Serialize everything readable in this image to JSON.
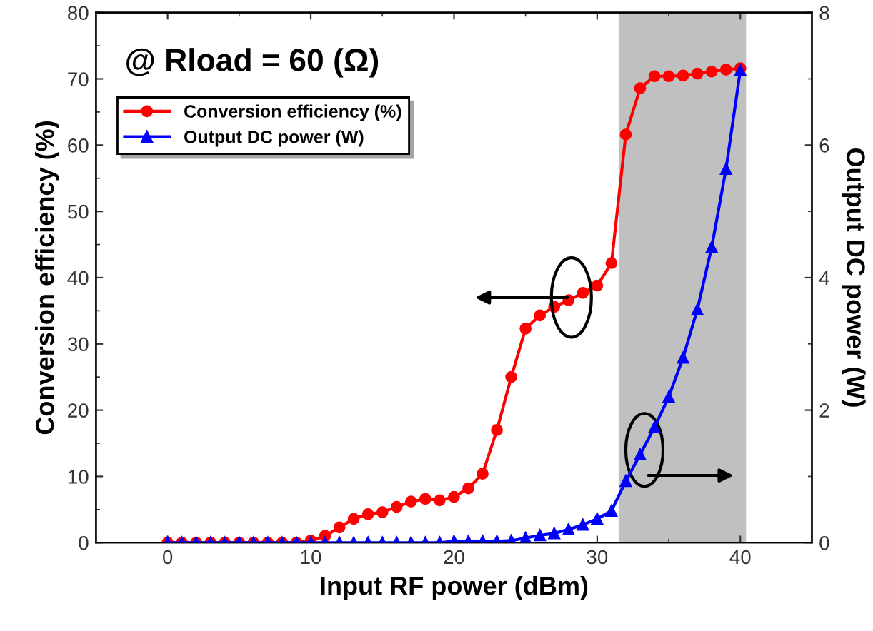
{
  "chart_data": {
    "type": "line",
    "xlabel": "Input RF power (dBm)",
    "ylabel": "Conversion efficiency (%)",
    "y2label": "Output DC power (W)",
    "annotations": [
      "@ Rload = 60 (Ω)"
    ],
    "x": [
      0,
      1,
      2,
      3,
      4,
      5,
      6,
      7,
      8,
      9,
      10,
      11,
      12,
      13,
      14,
      15,
      16,
      17,
      18,
      19,
      20,
      21,
      22,
      23,
      24,
      25,
      26,
      27,
      28,
      29,
      30,
      31,
      32,
      33,
      34,
      35,
      36,
      37,
      38,
      39,
      40
    ],
    "series": [
      {
        "name": "Conversion efficiency (%)",
        "color": "#ff0000",
        "marker": "circle",
        "values": [
          0,
          0,
          0,
          0,
          0,
          0,
          0,
          0,
          0,
          0,
          0.3,
          1.0,
          2.3,
          3.6,
          4.3,
          4.6,
          5.4,
          6.2,
          6.6,
          6.4,
          6.9,
          8.2,
          10.4,
          17.0,
          25.0,
          32.3,
          34.3,
          35.6,
          36.6,
          37.7,
          38.8,
          42.2,
          61.6,
          68.6,
          70.4,
          70.4,
          70.5,
          70.8,
          71.1,
          71.4,
          71.6
        ]
      },
      {
        "name": "Output DC power (W)",
        "color": "#0000ff",
        "marker": "triangle",
        "axis": "y2",
        "values": [
          0,
          0,
          0,
          0,
          0,
          0,
          0,
          0,
          0,
          0,
          0,
          0,
          0,
          0,
          0,
          0,
          0,
          0,
          0,
          0,
          0.02,
          0.02,
          0.02,
          0.02,
          0.03,
          0.07,
          0.11,
          0.14,
          0.2,
          0.27,
          0.36,
          0.48,
          0.93,
          1.33,
          1.74,
          2.2,
          2.79,
          3.52,
          4.46,
          5.64,
          7.13
        ]
      }
    ],
    "bands": [
      {
        "axis": "x",
        "from": 31.5,
        "to": 40.4,
        "color": "#c0c0c0"
      }
    ],
    "xlim": [
      -5,
      45
    ],
    "xticks": [
      0,
      10,
      20,
      30,
      40
    ],
    "ylim": [
      0,
      80
    ],
    "yticks": [
      0,
      10,
      20,
      30,
      40,
      50,
      60,
      70,
      80
    ],
    "y2lim": [
      0,
      8
    ],
    "y2ticks": [
      0,
      2,
      4,
      6,
      8
    ],
    "grid": false,
    "legend": "top left",
    "line_style": "solid"
  }
}
